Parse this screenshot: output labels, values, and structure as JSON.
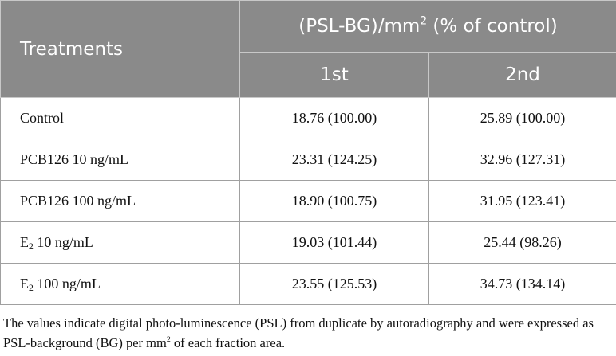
{
  "header": {
    "treatments": "Treatments",
    "group": {
      "text": "(PSL-BG)/mm",
      "sup": "2",
      "rest": " (% of control)"
    },
    "columns": [
      "1st",
      "2nd"
    ]
  },
  "rows": [
    {
      "treatment": {
        "text": "Control"
      },
      "values": [
        "18.76 (100.00)",
        "25.89 (100.00)"
      ]
    },
    {
      "treatment": {
        "text": "PCB126 10 ng/mL"
      },
      "values": [
        "23.31 (124.25)",
        "32.96 (127.31)"
      ]
    },
    {
      "treatment": {
        "text": "PCB126 100 ng/mL"
      },
      "values": [
        "18.90 (100.75)",
        "31.95 (123.41)"
      ]
    },
    {
      "treatment": {
        "text": "E",
        "sub": "2",
        "rest": " 10 ng/mL"
      },
      "values": [
        "19.03 (101.44)",
        "25.44 (98.26)"
      ]
    },
    {
      "treatment": {
        "text": "E",
        "sub": "2",
        "rest": " 100 ng/mL"
      },
      "values": [
        "23.55 (125.53)",
        "34.73 (134.14)"
      ]
    }
  ],
  "footnote": {
    "text": "The values indicate digital photo-luminescence (PSL) from duplicate by autoradiography and were expressed as PSL-background (BG) per mm",
    "sup": "2",
    "rest": " of each fraction area."
  }
}
